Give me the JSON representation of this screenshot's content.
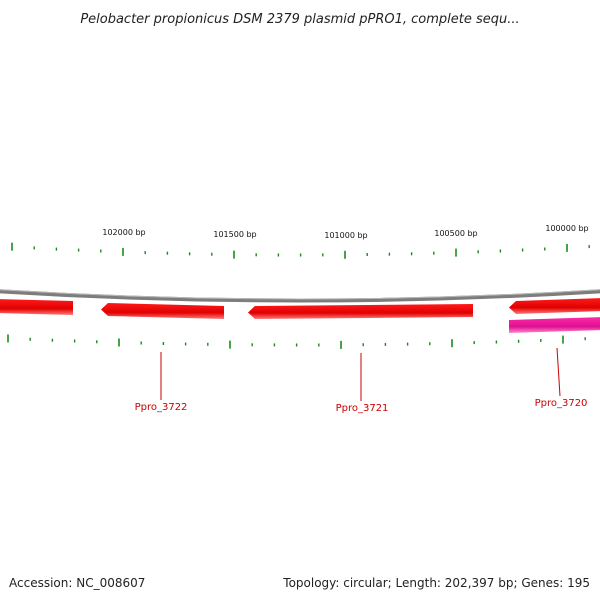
{
  "header": {
    "title": "Pelobacter propionicus DSM 2379 plasmid pPRO1, complete sequ..."
  },
  "scale_labels": [
    "102000 bp",
    "101500 bp",
    "101000 bp",
    "100500 bp",
    "100000 bp"
  ],
  "genes": [
    {
      "name": "Ppro_3722",
      "strand": "reverse",
      "color": "#ee0000"
    },
    {
      "name": "Ppro_3721",
      "strand": "reverse",
      "color": "#ee0000"
    },
    {
      "name": "Ppro_3720",
      "strand": "reverse",
      "color": "#ee0000"
    }
  ],
  "colors": {
    "backbone": "#888888",
    "cds": "#ee0000",
    "cds_light": "#ff8080",
    "feature": "#e0209a",
    "tick": "#1a8a1a",
    "label": "#cc0000"
  },
  "footer": {
    "accession": "Accession: NC_008607",
    "summary": "Topology: circular; Length: 202,397 bp; Genes: 195"
  }
}
